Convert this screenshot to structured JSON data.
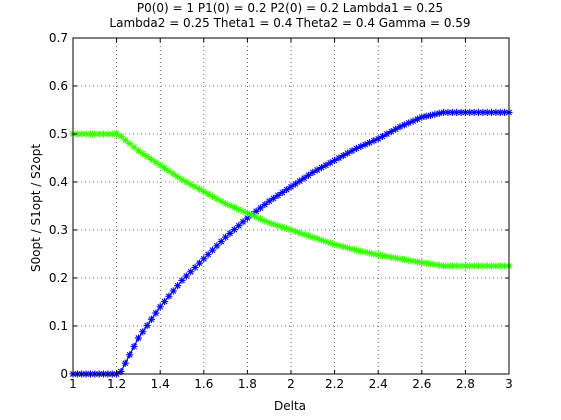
{
  "chart_data": {
    "type": "line",
    "title_lines": [
      "P0(0) = 1 P1(0) = 0.2 P2(0) = 0.2 Lambda1 = 0.25",
      "Lambda2 = 0.25 Theta1 = 0.4 Theta2 = 0.4 Gamma = 0.59"
    ],
    "xlabel": "Delta",
    "ylabel": "S0opt / S1opt / S2opt",
    "xlim": [
      1,
      3
    ],
    "ylim": [
      0,
      0.7
    ],
    "xticks": [
      1,
      1.2,
      1.4,
      1.6,
      1.8,
      2,
      2.2,
      2.4,
      2.6,
      2.8,
      3
    ],
    "yticks": [
      0,
      0.1,
      0.2,
      0.3,
      0.4,
      0.5,
      0.6,
      0.7
    ],
    "xtick_labels": [
      "1",
      "1.2",
      "1.4",
      "1.6",
      "1.8",
      "2",
      "2.2",
      "2.4",
      "2.6",
      "2.8",
      "3"
    ],
    "ytick_labels": [
      "0",
      "0.1",
      "0.2",
      "0.3",
      "0.4",
      "0.5",
      "0.6",
      "0.7"
    ],
    "grid": true,
    "grid_style": "dotted",
    "marker": "asterisk",
    "series": [
      {
        "color": "#0000ff",
        "x": [
          1.0,
          1.1,
          1.2,
          1.22,
          1.3,
          1.4,
          1.5,
          1.6,
          1.7,
          1.8,
          1.9,
          2.0,
          2.1,
          2.2,
          2.3,
          2.4,
          2.5,
          2.6,
          2.7,
          2.8,
          2.9,
          3.0
        ],
        "y": [
          0.0,
          0.0,
          0.0,
          0.005,
          0.075,
          0.14,
          0.195,
          0.24,
          0.285,
          0.325,
          0.36,
          0.39,
          0.42,
          0.445,
          0.47,
          0.49,
          0.515,
          0.535,
          0.545,
          0.545,
          0.545,
          0.545
        ]
      },
      {
        "color": "#33ff00",
        "x": [
          1.0,
          1.1,
          1.2,
          1.22,
          1.3,
          1.4,
          1.5,
          1.6,
          1.7,
          1.8,
          1.9,
          2.0,
          2.1,
          2.2,
          2.3,
          2.4,
          2.5,
          2.6,
          2.7,
          2.8,
          2.9,
          3.0
        ],
        "y": [
          0.5,
          0.5,
          0.5,
          0.495,
          0.465,
          0.435,
          0.405,
          0.38,
          0.355,
          0.335,
          0.315,
          0.3,
          0.285,
          0.27,
          0.258,
          0.248,
          0.24,
          0.232,
          0.225,
          0.225,
          0.225,
          0.225
        ]
      }
    ]
  }
}
